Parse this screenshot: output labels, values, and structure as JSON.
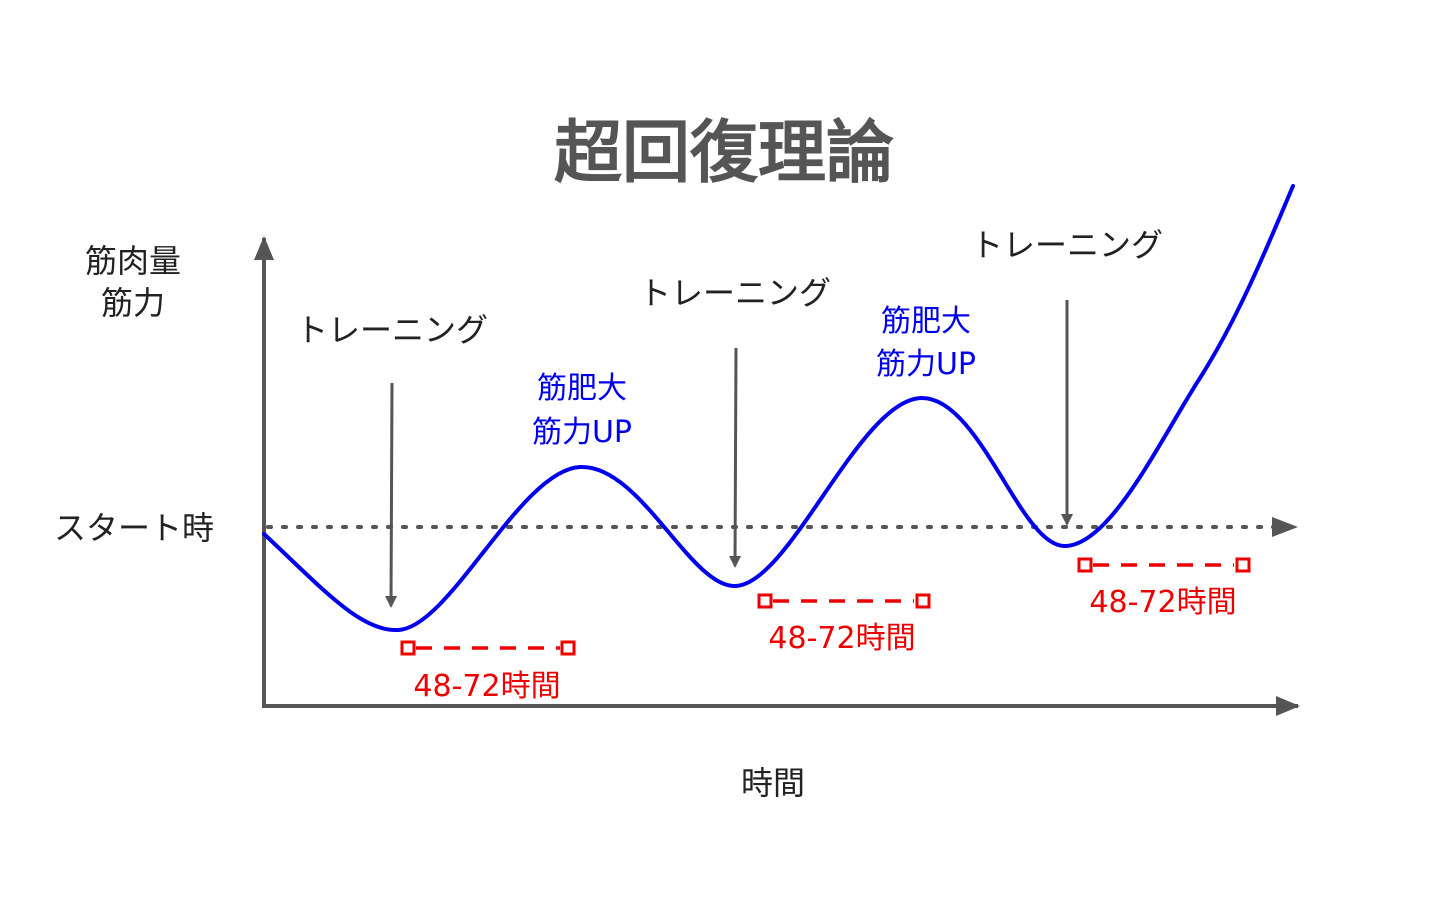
{
  "title": "超回復理論",
  "y_axis_label": [
    "筋肉量",
    "筋力"
  ],
  "x_axis_label": "時間",
  "baseline_label": "スタート時",
  "training_label": "トレーニング",
  "growth_label": [
    "筋肥大",
    "筋力UP"
  ],
  "recovery_label": "48-72時間",
  "colors": {
    "curve": "#0000ee",
    "axis": "#555555",
    "recovery": "#ee0000",
    "text": "#222222",
    "title": "#555555"
  }
}
